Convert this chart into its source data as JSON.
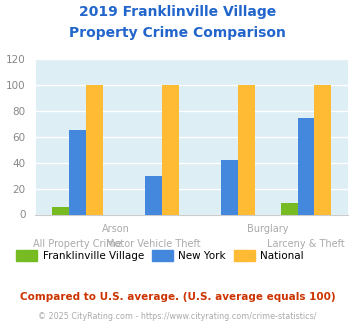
{
  "title_line1": "2019 Franklinville Village",
  "title_line2": "Property Crime Comparison",
  "franklinville": [
    6,
    0,
    0,
    9
  ],
  "new_york": [
    65,
    30,
    42,
    75
  ],
  "national": [
    100,
    100,
    100,
    100
  ],
  "franklinville_color": "#77bb22",
  "new_york_color": "#4488dd",
  "national_color": "#ffbb33",
  "ylim": [
    0,
    120
  ],
  "yticks": [
    0,
    20,
    40,
    60,
    80,
    100,
    120
  ],
  "bg_color": "#ddeef4",
  "grid_color": "#ffffff",
  "title_color": "#2266cc",
  "label_color": "#aaaaaa",
  "legend_labels": [
    "Franklinville Village",
    "New York",
    "National"
  ],
  "footnote1": "Compared to U.S. average. (U.S. average equals 100)",
  "footnote2": "© 2025 CityRating.com - https://www.cityrating.com/crime-statistics/",
  "footnote1_color": "#cc3300",
  "footnote2_color": "#aaaaaa",
  "bar_width": 0.22
}
